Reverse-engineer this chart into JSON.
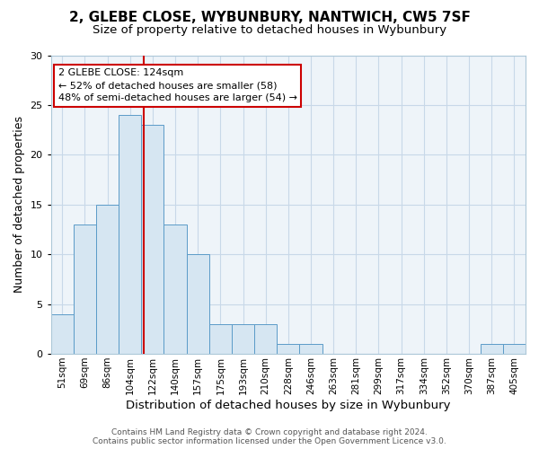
{
  "title": "2, GLEBE CLOSE, WYBUNBURY, NANTWICH, CW5 7SF",
  "subtitle": "Size of property relative to detached houses in Wybunbury",
  "xlabel": "Distribution of detached houses by size in Wybunbury",
  "ylabel": "Number of detached properties",
  "bin_labels": [
    "51sqm",
    "69sqm",
    "86sqm",
    "104sqm",
    "122sqm",
    "140sqm",
    "157sqm",
    "175sqm",
    "193sqm",
    "210sqm",
    "228sqm",
    "246sqm",
    "263sqm",
    "281sqm",
    "299sqm",
    "317sqm",
    "334sqm",
    "352sqm",
    "370sqm",
    "387sqm",
    "405sqm"
  ],
  "bar_heights": [
    4,
    13,
    15,
    24,
    23,
    13,
    10,
    3,
    3,
    3,
    1,
    1,
    0,
    0,
    0,
    0,
    0,
    0,
    0,
    1,
    1
  ],
  "bar_color": "#d6e6f2",
  "bar_edge_color": "#5b9bc8",
  "red_line_color": "#cc0000",
  "annotation_line1": "2 GLEBE CLOSE: 124sqm",
  "annotation_line2": "← 52% of detached houses are smaller (58)",
  "annotation_line3": "48% of semi-detached houses are larger (54) →",
  "annotation_box_facecolor": "#ffffff",
  "annotation_box_edgecolor": "#cc0000",
  "ylim": [
    0,
    30
  ],
  "yticks": [
    0,
    5,
    10,
    15,
    20,
    25,
    30
  ],
  "grid_color": "#c8d8e8",
  "bg_color": "#eef4f9",
  "footer_line1": "Contains HM Land Registry data © Crown copyright and database right 2024.",
  "footer_line2": "Contains public sector information licensed under the Open Government Licence v3.0.",
  "title_fontsize": 11,
  "subtitle_fontsize": 9.5,
  "xlabel_fontsize": 9.5,
  "ylabel_fontsize": 9,
  "tick_fontsize": 7.5,
  "footer_fontsize": 6.5,
  "annotation_fontsize": 8
}
